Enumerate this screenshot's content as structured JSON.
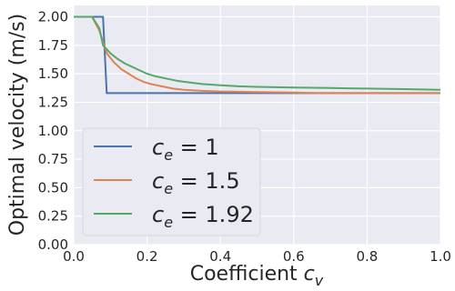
{
  "chart_data": {
    "type": "line",
    "xlabel": "Coefficient c_v",
    "xlabel_parts": {
      "main": "Coefficient ",
      "symbol": "c",
      "sub": "v"
    },
    "ylabel": "Optimal velocity (m/s)",
    "xlim": [
      0,
      1
    ],
    "ylim": [
      0,
      2.1
    ],
    "xticks": [
      0.0,
      0.2,
      0.4,
      0.6,
      0.8,
      1.0
    ],
    "xtick_labels": [
      "0.0",
      "0.2",
      "0.4",
      "0.6",
      "0.8",
      "1.0"
    ],
    "yticks": [
      0.0,
      0.25,
      0.5,
      0.75,
      1.0,
      1.25,
      1.5,
      1.75,
      2.0
    ],
    "ytick_labels": [
      "0.00",
      "0.25",
      "0.50",
      "0.75",
      "1.00",
      "1.25",
      "1.50",
      "1.75",
      "2.00"
    ],
    "grid": true,
    "legend_position": "lower-left",
    "series": [
      {
        "name": "c_e = 1",
        "legend": {
          "symbol": "c",
          "sub": "e",
          "rest": " = 1"
        },
        "color": "#4c72b0",
        "x": [
          0.0,
          0.08,
          0.09,
          1.0
        ],
        "y": [
          2.0,
          2.0,
          1.33,
          1.33
        ]
      },
      {
        "name": "c_e = 1.5",
        "legend": {
          "symbol": "c",
          "sub": "e",
          "rest": " = 1.5"
        },
        "color": "#dd8452",
        "x": [
          0.0,
          0.05,
          0.07,
          0.09,
          0.11,
          0.13,
          0.15,
          0.17,
          0.19,
          0.21,
          0.24,
          0.27,
          0.3,
          0.35,
          0.4,
          0.5,
          0.6,
          0.66,
          0.8,
          1.0
        ],
        "y": [
          2.0,
          2.0,
          1.88,
          1.68,
          1.6,
          1.54,
          1.5,
          1.46,
          1.43,
          1.41,
          1.39,
          1.37,
          1.36,
          1.35,
          1.345,
          1.34,
          1.335,
          1.33,
          1.33,
          1.33
        ]
      },
      {
        "name": "c_e = 1.92",
        "legend": {
          "symbol": "c",
          "sub": "e",
          "rest": " = 1.92"
        },
        "color": "#55a868",
        "x": [
          0.0,
          0.05,
          0.07,
          0.08,
          0.1,
          0.12,
          0.14,
          0.16,
          0.18,
          0.2,
          0.22,
          0.25,
          0.28,
          0.3,
          0.35,
          0.4,
          0.45,
          0.5,
          0.6,
          0.7,
          0.8,
          0.9,
          1.0
        ],
        "y": [
          2.0,
          2.0,
          1.9,
          1.75,
          1.68,
          1.63,
          1.59,
          1.56,
          1.53,
          1.5,
          1.48,
          1.46,
          1.44,
          1.43,
          1.41,
          1.4,
          1.39,
          1.385,
          1.38,
          1.375,
          1.37,
          1.365,
          1.36
        ]
      }
    ]
  }
}
